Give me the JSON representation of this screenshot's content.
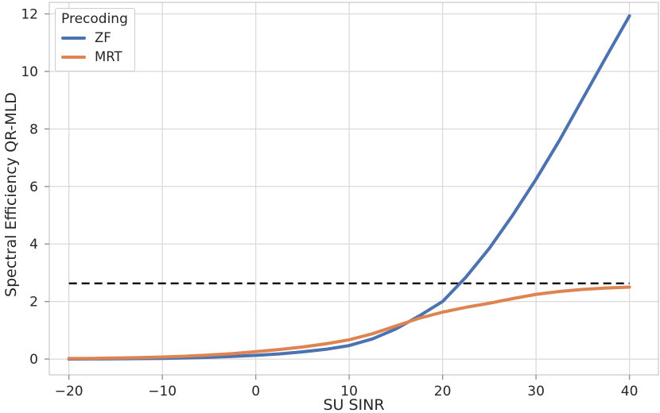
{
  "figure": {
    "background": "#ffffff",
    "text_color": "#262626",
    "grid_color": "#d9d9d9",
    "spine_color": "#cccccc",
    "tick_color": "#8c8c8c"
  },
  "chart_data": {
    "type": "line",
    "title": "",
    "xlabel": "SU SINR",
    "ylabel": "Spectral Efficiency QR-MLD",
    "xlim": [
      -22.1,
      43.1
    ],
    "ylim": [
      -0.55,
      12.4
    ],
    "xticks": [
      -20,
      -10,
      0,
      10,
      20,
      30,
      40
    ],
    "yticks": [
      0,
      2,
      4,
      6,
      8,
      10,
      12
    ],
    "grid": true,
    "legend": {
      "title": "Precoding",
      "position": "upper-left"
    },
    "x": [
      -20,
      -17.5,
      -15,
      -12.5,
      -10,
      -7.5,
      -5,
      -2.5,
      0,
      2.5,
      5,
      7.5,
      10,
      12.5,
      15,
      17.5,
      20,
      22.5,
      25,
      27.5,
      30,
      32.5,
      35,
      37.5,
      40
    ],
    "series": [
      {
        "name": "ZF",
        "color": "#4C72B0",
        "values": [
          0.0,
          0.005,
          0.01,
          0.015,
          0.025,
          0.04,
          0.06,
          0.09,
          0.13,
          0.18,
          0.25,
          0.34,
          0.47,
          0.7,
          1.05,
          1.5,
          2.0,
          2.85,
          3.85,
          5.0,
          6.25,
          7.6,
          9.05,
          10.5,
          11.93
        ]
      },
      {
        "name": "MRT",
        "color": "#DD8452",
        "values": [
          0.02,
          0.025,
          0.035,
          0.05,
          0.07,
          0.1,
          0.14,
          0.19,
          0.26,
          0.33,
          0.42,
          0.53,
          0.67,
          0.88,
          1.15,
          1.42,
          1.63,
          1.8,
          1.94,
          2.1,
          2.25,
          2.35,
          2.42,
          2.47,
          2.5
        ]
      }
    ],
    "reference_line": {
      "y": 2.63,
      "style": "dashed",
      "color": "#000000"
    }
  }
}
